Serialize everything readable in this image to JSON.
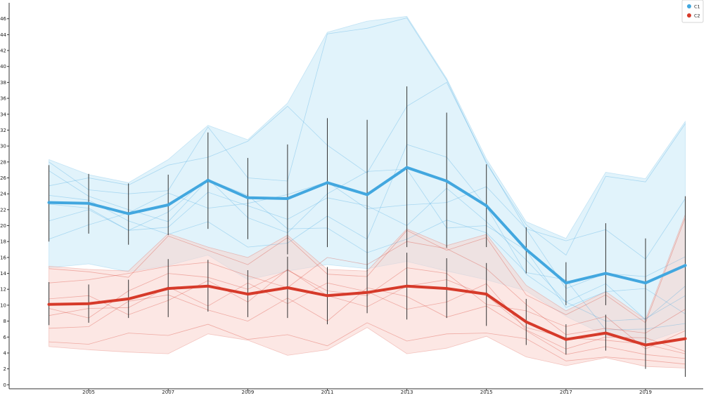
{
  "chart_data": {
    "type": "line",
    "title": "",
    "xlabel": "",
    "ylabel": "",
    "x": [
      2004,
      2005,
      2006,
      2007,
      2008,
      2009,
      2010,
      2011,
      2012,
      2013,
      2014,
      2015,
      2016,
      2017,
      2018,
      2019,
      2020
    ],
    "xlim": [
      2003.0,
      2020.45
    ],
    "ylim": [
      -0.5,
      48.0
    ],
    "x_ticks": [
      "2005",
      "2007",
      "2009",
      "2011",
      "2013",
      "2015",
      "2017",
      "2019"
    ],
    "y_ticks": [
      "0",
      "2",
      "4",
      "6",
      "8",
      "10",
      "12",
      "14",
      "16",
      "18",
      "20",
      "22",
      "24",
      "26",
      "28",
      "30",
      "32",
      "34",
      "36",
      "38",
      "40",
      "42",
      "44",
      "46"
    ],
    "grid": false,
    "legend_position": "top-right",
    "series": [
      {
        "name": "C1",
        "color": "#42a7df",
        "band_color": "#c8eaf8",
        "mean": [
          22.9,
          22.8,
          21.5,
          22.6,
          25.7,
          23.5,
          23.4,
          25.4,
          23.9,
          27.3,
          25.6,
          22.5,
          17.0,
          12.8,
          14.0,
          12.8,
          15.0
        ],
        "err_low": [
          18.0,
          19.0,
          17.6,
          18.8,
          19.6,
          18.3,
          16.4,
          17.3,
          14.3,
          17.3,
          17.2,
          17.3,
          14.0,
          10.0,
          10.0,
          7.0,
          6.0
        ],
        "err_high": [
          27.6,
          26.5,
          25.3,
          26.4,
          31.7,
          28.5,
          30.2,
          33.5,
          33.3,
          37.5,
          34.2,
          27.7,
          19.8,
          15.4,
          20.3,
          18.4,
          23.7
        ],
        "band_upper": [
          28.3,
          26.4,
          25.4,
          28.3,
          32.6,
          30.8,
          35.4,
          44.3,
          45.7,
          46.3,
          38.5,
          28.4,
          20.5,
          18.4,
          26.7,
          25.9,
          33.1
        ],
        "band_lower": [
          14.7,
          15.2,
          14.2,
          15.0,
          16.3,
          13.2,
          14.3,
          15.1,
          14.6,
          15.5,
          14.3,
          13.2,
          11.8,
          8.6,
          6.2,
          5.3,
          7.0
        ],
        "individual_lines": [
          [
            28.0,
            24.5,
            24.0,
            24.4,
            32.4,
            26.0,
            25.6,
            44.1,
            44.8,
            46.1,
            38.3,
            27.8,
            20.1,
            16.3,
            26.2,
            25.5,
            32.8
          ],
          [
            25.0,
            26.0,
            25.1,
            27.6,
            28.6,
            30.6,
            35.0,
            30.1,
            26.6,
            35.0,
            38.0,
            28.0,
            19.6,
            18.1,
            19.5,
            15.8,
            23.4
          ],
          [
            23.8,
            23.2,
            20.6,
            18.9,
            20.5,
            17.3,
            17.8,
            21.2,
            18.3,
            30.2,
            28.6,
            22.4,
            13.9,
            10.4,
            12.7,
            8.2,
            12.4
          ],
          [
            18.3,
            20.1,
            21.6,
            24.1,
            22.2,
            22.8,
            23.9,
            25.5,
            22.1,
            22.6,
            22.9,
            24.9,
            19.6,
            12.1,
            14.0,
            13.6,
            16.1
          ],
          [
            20.6,
            22.0,
            19.4,
            21.7,
            25.9,
            21.0,
            19.1,
            24.0,
            26.8,
            27.1,
            19.7,
            20.0,
            16.9,
            9.7,
            11.7,
            12.1,
            8.9
          ],
          [
            22.7,
            22.2,
            19.4,
            19.8,
            24.2,
            22.5,
            20.8,
            23.5,
            22.5,
            20.0,
            24.7,
            20.5,
            15.7,
            10.4,
            8.0,
            8.3,
            11.2
          ],
          [
            26.9,
            23.7,
            22.0,
            20.5,
            25.8,
            23.8,
            19.6,
            19.7,
            16.6,
            18.3,
            20.7,
            19.1,
            14.1,
            13.2,
            6.9,
            7.0,
            7.7
          ]
        ]
      },
      {
        "name": "C2",
        "color": "#d63a2a",
        "band_color": "#f9d3cd",
        "mean": [
          10.1,
          10.2,
          10.8,
          12.1,
          12.4,
          11.4,
          12.2,
          11.2,
          11.6,
          12.4,
          12.1,
          11.4,
          7.9,
          5.7,
          6.5,
          5.0,
          5.8
        ],
        "err_low": [
          7.5,
          7.8,
          8.4,
          8.5,
          9.2,
          8.5,
          8.4,
          7.6,
          9.0,
          8.2,
          8.4,
          7.4,
          5.0,
          3.8,
          4.3,
          2.0,
          1.0
        ],
        "err_high": [
          12.9,
          12.6,
          13.2,
          15.8,
          15.7,
          14.4,
          16.1,
          14.8,
          14.4,
          16.6,
          15.9,
          15.3,
          10.8,
          7.6,
          8.8,
          8.0,
          10.6
        ],
        "band_upper": [
          14.9,
          14.5,
          14.3,
          19.0,
          17.3,
          16.0,
          18.8,
          14.5,
          14.3,
          19.6,
          17.5,
          18.9,
          12.5,
          9.3,
          11.7,
          8.2,
          21.4
        ],
        "band_lower": [
          4.8,
          4.4,
          4.1,
          3.9,
          6.4,
          5.6,
          3.7,
          4.4,
          7.2,
          3.9,
          4.6,
          6.1,
          3.5,
          2.4,
          3.4,
          2.3,
          2.1
        ],
        "individual_lines": [
          [
            14.6,
            14.2,
            13.5,
            18.7,
            16.9,
            15.1,
            18.5,
            13.9,
            13.6,
            19.4,
            16.9,
            18.5,
            11.3,
            8.8,
            11.3,
            7.8,
            21.0
          ],
          [
            12.8,
            13.2,
            14.0,
            14.9,
            15.4,
            13.7,
            12.2,
            16.0,
            15.1,
            18.0,
            17.1,
            14.6,
            10.1,
            6.3,
            7.1,
            6.5,
            9.5
          ],
          [
            9.6,
            8.4,
            11.8,
            14.0,
            13.5,
            12.0,
            14.4,
            11.8,
            11.2,
            14.7,
            14.0,
            10.1,
            9.3,
            7.3,
            8.6,
            4.5,
            6.8
          ],
          [
            10.8,
            11.2,
            8.8,
            10.6,
            13.1,
            10.4,
            14.5,
            11.2,
            9.8,
            12.4,
            13.2,
            11.2,
            7.2,
            5.9,
            5.6,
            5.1,
            3.9
          ],
          [
            8.7,
            9.6,
            9.7,
            12.3,
            9.9,
            12.8,
            10.2,
            12.8,
            11.7,
            9.5,
            10.4,
            12.7,
            6.9,
            4.5,
            6.0,
            5.9,
            4.2
          ],
          [
            7.1,
            7.3,
            10.5,
            11.3,
            9.4,
            8.0,
            10.9,
            8.0,
            12.2,
            11.1,
            8.5,
            9.9,
            6.8,
            3.8,
            4.8,
            3.8,
            3.3
          ],
          [
            5.4,
            5.1,
            6.5,
            6.2,
            7.6,
            5.7,
            6.3,
            4.9,
            7.8,
            5.5,
            6.4,
            6.5,
            5.8,
            3.0,
            3.5,
            3.1,
            2.6
          ]
        ]
      }
    ]
  }
}
